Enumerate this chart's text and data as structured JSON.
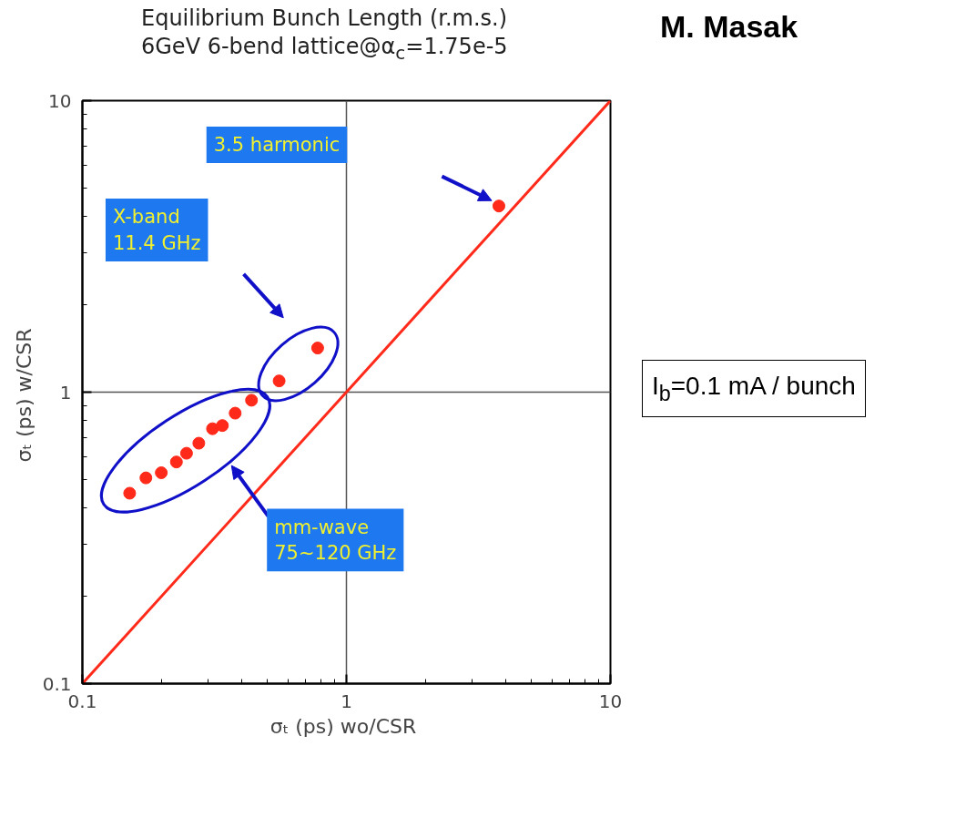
{
  "chart_data": {
    "type": "scatter",
    "title": "Equilibrium Bunch Length (r.m.s.)",
    "subtitle": "6GeV  6-bend lattice@α$_{c}$=1.75e-5",
    "xlabel": "σₜ (ps)  wo/CSR",
    "ylabel": "σₜ (ps)  w/CSR",
    "log": "xy",
    "xlim": [
      0.1,
      10
    ],
    "ylim": [
      0.1,
      10
    ],
    "xticks": [
      0.1,
      1,
      10
    ],
    "yticks": [
      0.1,
      1,
      10
    ],
    "grid": true,
    "series": [
      {
        "marker": "circle",
        "color": "#ff2a1a",
        "x": [
          0.151,
          0.174,
          0.199,
          0.227,
          0.248,
          0.276,
          0.311,
          0.339,
          0.379,
          0.437,
          0.556,
          0.778,
          3.78
        ],
        "values": [
          0.45,
          0.508,
          0.529,
          0.576,
          0.617,
          0.668,
          0.749,
          0.768,
          0.847,
          0.938,
          1.093,
          1.417,
          4.35
        ]
      },
      {
        "type": "line",
        "color": "#ff2a1a",
        "line_style": "solid",
        "x": [
          0.1,
          10
        ],
        "values": [
          0.1,
          10
        ]
      }
    ],
    "annotations": [
      "3.5 harmonic",
      "X-band\n11.4 GHz",
      "mm-wave\n75~120 GHz",
      "I$_{b}$=0.1 mA / bunch",
      "M. Masak"
    ]
  }
}
